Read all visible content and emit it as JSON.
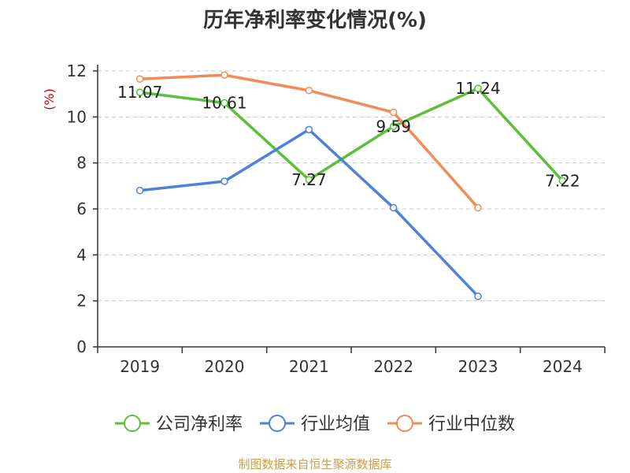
{
  "colors": {
    "axis": "#333333",
    "grid": "#c8c8c8",
    "unit": "#cc0000",
    "source": "#c8a04a"
  },
  "chart_data": {
    "type": "line",
    "title": "历年净利率变化情况(%)",
    "ylabel": "(%)",
    "xlabel": "",
    "categories": [
      "2019",
      "2020",
      "2021",
      "2022",
      "2023",
      "2024"
    ],
    "ylim": [
      0,
      12
    ],
    "yticks": [
      0,
      2,
      4,
      6,
      8,
      10,
      12
    ],
    "grid": true,
    "legend_position": "bottom",
    "series": [
      {
        "name": "公司净利率",
        "color": "#5cc03a",
        "values": [
          11.07,
          10.61,
          7.27,
          9.59,
          11.24,
          7.22
        ],
        "data_labels": [
          "11.07",
          "10.61",
          "7.27",
          "9.59",
          "11.24",
          "7.22"
        ]
      },
      {
        "name": "行业均值",
        "color": "#4e81dc",
        "values": [
          6.8,
          7.2,
          9.45,
          6.05,
          2.2,
          null
        ],
        "data_labels": []
      },
      {
        "name": "行业中位数",
        "color": "#f08c5a",
        "values": [
          11.65,
          11.82,
          11.15,
          10.2,
          6.05,
          null
        ],
        "data_labels": []
      }
    ]
  },
  "source": "制图数据来自恒生聚源数据库"
}
